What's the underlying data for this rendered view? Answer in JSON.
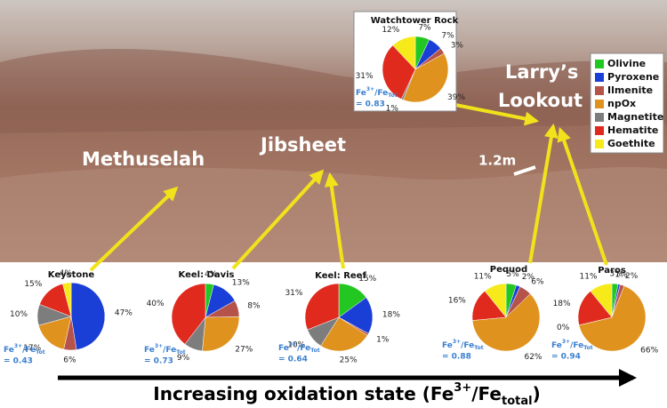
{
  "chart_data": [
    {
      "type": "pie",
      "title": "Keystone",
      "categories": [
        "Pyroxene",
        "Ilmenite",
        "npOx",
        "Magnetite",
        "Hematite",
        "Goethite"
      ],
      "values": [
        47,
        6,
        17,
        10,
        15,
        4
      ],
      "value_labels": [
        "47%",
        "6%",
        "17%",
        "10%",
        "15%",
        "4%"
      ],
      "colors": [
        "#1a3fd6",
        "#b5524a",
        "#e0921e",
        "#7d7d7d",
        "#e02a1e",
        "#f6ea1a"
      ],
      "ratio_label": {
        "base": "Fe",
        "sup": "3+",
        "mid": "/Fe",
        "sub": "Tot"
      },
      "ratio": "= 0.43"
    },
    {
      "type": "pie",
      "title": "Keel: Davis",
      "categories": [
        "Olivine",
        "Pyroxene",
        "Ilmenite",
        "npOx",
        "Magnetite",
        "Hematite"
      ],
      "values": [
        4,
        13,
        8,
        27,
        9,
        40
      ],
      "value_labels": [
        "4%",
        "13%",
        "8%",
        "27%",
        "9%",
        "40%"
      ],
      "colors": [
        "#22c722",
        "#1a3fd6",
        "#b5524a",
        "#e0921e",
        "#7d7d7d",
        "#e02a1e"
      ],
      "ratio_label": {
        "base": "Fe",
        "sup": "3+",
        "mid": "/Fe",
        "sub": "Tot"
      },
      "ratio": "= 0.73"
    },
    {
      "type": "pie",
      "title": "Keel: Reef",
      "categories": [
        "Olivine",
        "Pyroxene",
        "Ilmenite",
        "npOx",
        "Magnetite",
        "Hematite"
      ],
      "values": [
        15,
        18,
        1,
        25,
        10,
        31
      ],
      "value_labels": [
        "15%",
        "18%",
        "1%",
        "25%",
        "10%",
        "31%"
      ],
      "colors": [
        "#22c722",
        "#1a3fd6",
        "#b5524a",
        "#e0921e",
        "#7d7d7d",
        "#e02a1e"
      ],
      "ratio_label": {
        "base": "Fe",
        "sup": "3+",
        "mid": "/Fe",
        "sub": "Tot"
      },
      "ratio": "= 0.64"
    },
    {
      "type": "pie",
      "title": "Pequod",
      "categories": [
        "Olivine",
        "Pyroxene",
        "Ilmenite",
        "npOx",
        "Hematite",
        "Goethite"
      ],
      "values": [
        5,
        2,
        6,
        62,
        16,
        11
      ],
      "value_labels": [
        "5%",
        "2%",
        "6%",
        "62%",
        "16%",
        "11%"
      ],
      "colors": [
        "#22c722",
        "#1a3fd6",
        "#b5524a",
        "#e0921e",
        "#e02a1e",
        "#f6ea1a"
      ],
      "ratio_label": {
        "base": "Fe",
        "sup": "3+",
        "mid": "/Fe",
        "sub": "Tot"
      },
      "ratio": "= 0.88"
    },
    {
      "type": "pie",
      "title": "Paros",
      "categories": [
        "Olivine",
        "Pyroxene",
        "Ilmenite",
        "npOx",
        "Magnetite",
        "Hematite",
        "Goethite"
      ],
      "values": [
        3,
        1,
        2,
        66,
        0,
        18,
        11
      ],
      "value_labels": [
        "3%",
        "1%",
        "2%",
        "66%",
        "0%",
        "18%",
        "11%"
      ],
      "colors": [
        "#22c722",
        "#1a3fd6",
        "#b5524a",
        "#e0921e",
        "#7d7d7d",
        "#e02a1e",
        "#f6ea1a"
      ],
      "ratio_label": {
        "base": "Fe",
        "sup": "3+",
        "mid": "/Fe",
        "sub": "Tot"
      },
      "ratio": "= 0.94"
    },
    {
      "type": "pie",
      "title": "Watchtower Rock",
      "categories": [
        "Olivine",
        "Pyroxene",
        "Ilmenite",
        "npOx",
        "Magnetite",
        "Hematite",
        "Goethite"
      ],
      "values": [
        7,
        7,
        3,
        39,
        1,
        31,
        12
      ],
      "value_labels": [
        "7%",
        "7%",
        "3%",
        "39%",
        "1%",
        "31%",
        "12%"
      ],
      "colors": [
        "#22c722",
        "#1a3fd6",
        "#b5524a",
        "#e0921e",
        "#7d7d7d",
        "#e02a1e",
        "#f6ea1a"
      ],
      "ratio_label": {
        "base": "Fe",
        "sup": "3+",
        "mid": "/Fe",
        "sub": "Tot"
      },
      "ratio": "= 0.83"
    }
  ],
  "legend": {
    "labels": [
      "Olivine",
      "Pyroxene",
      "Ilmenite",
      "npOx",
      "Magnetite",
      "Hematite",
      "Goethite"
    ],
    "colors": [
      "#22c722",
      "#1a3fd6",
      "#b5524a",
      "#e0921e",
      "#7d7d7d",
      "#e02a1e",
      "#f6ea1a"
    ]
  },
  "places": {
    "methuselah": "Methuselah",
    "jibsheet": "Jibsheet",
    "larrys": [
      "Larry’s",
      "Lookout"
    ],
    "scale": "1.2m"
  },
  "axis_label": {
    "text": "Increasing oxidation state (Fe",
    "sup": "3+",
    "mid": "/Fe",
    "sub": "total",
    "end": ")"
  }
}
